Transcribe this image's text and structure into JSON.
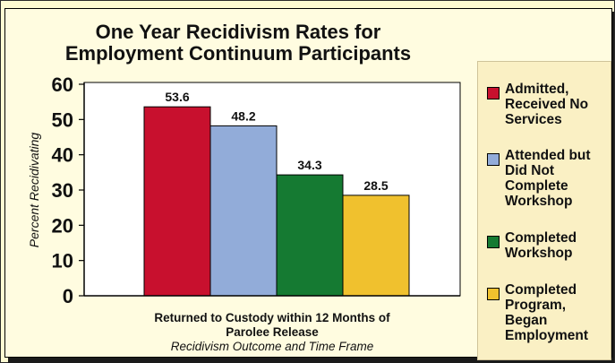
{
  "chart_data": {
    "type": "bar",
    "title": "One Year Recidivism Rates for Employment Continuum Participants",
    "ylabel": "Percent Recidivating",
    "xlabel": "Returned to Custody within 12 Months of Parolee Release",
    "xlabel_sub": "Recidivism Outcome and Time Frame",
    "ylim": [
      0,
      60
    ],
    "yticks": [
      "0",
      "10",
      "20",
      "30",
      "40",
      "50",
      "60"
    ],
    "grid": false,
    "legend_position": "right",
    "series": [
      {
        "name": "Admitted, Received No Services",
        "value": 53.6,
        "color": "#c8102e"
      },
      {
        "name": "Attended but Did Not Complete Workshop",
        "value": 48.2,
        "color": "#92acd9"
      },
      {
        "name": "Completed Workshop",
        "value": 34.3,
        "color": "#157a32"
      },
      {
        "name": "Completed Program, Began Employment",
        "value": 28.5,
        "color": "#f0c12e"
      }
    ]
  },
  "legend_items": [
    "Admitted, Received No Services",
    "Attended but Did Not Complete Workshop",
    "Completed Workshop",
    "Completed Program, Began Employment"
  ],
  "title_line1": "One Year Recidivism Rates for",
  "title_line2": "Employment Continuum Participants",
  "xlabel_line1": "Returned to Custody within 12 Months of",
  "xlabel_line2": "Parolee Release"
}
